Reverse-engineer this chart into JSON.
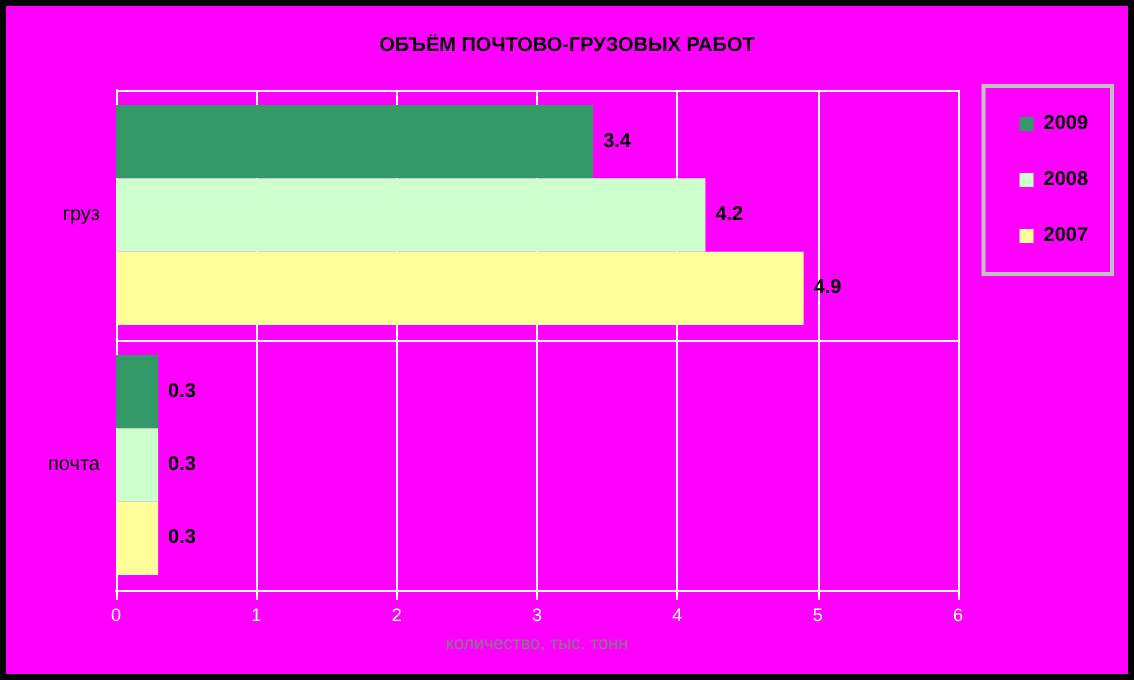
{
  "chart_data": {
    "type": "bar",
    "orientation": "horizontal",
    "title": "ОБЪЁМ ПОЧТОВО-ГРУЗОВЫХ РАБОТ",
    "xlabel": "количество, тыс. тонн",
    "categories": [
      "груз",
      "почта"
    ],
    "series": [
      {
        "name": "2009",
        "color": "#339966",
        "values": [
          3.4,
          0.3
        ]
      },
      {
        "name": "2008",
        "color": "#ccffcc",
        "values": [
          4.2,
          0.3
        ]
      },
      {
        "name": "2007",
        "color": "#ffff99",
        "values": [
          4.9,
          0.3
        ]
      }
    ],
    "xlim": [
      0,
      6
    ],
    "xticks": [
      0,
      1,
      2,
      3,
      4,
      5,
      6
    ],
    "grid": true,
    "legend": "right",
    "data_labels": true
  }
}
